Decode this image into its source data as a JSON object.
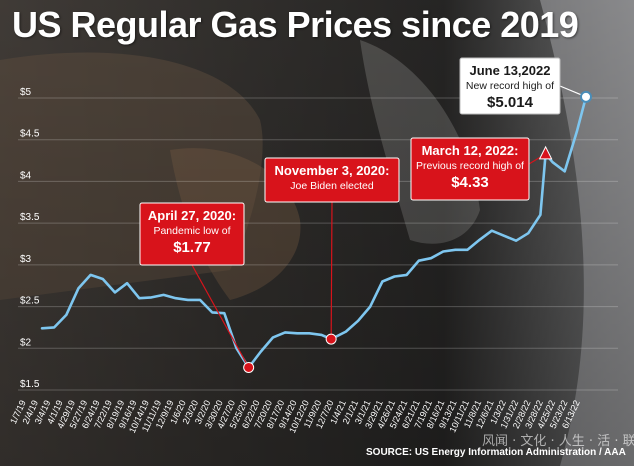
{
  "header": {
    "title": "US Regular Gas Prices since 2019"
  },
  "chart_data": {
    "type": "line",
    "title": "US Regular Gas Prices since 2019",
    "xlabel": "",
    "ylabel": "",
    "ylim": [
      1.5,
      5.0
    ],
    "yticks": [
      "$5",
      "$4.5",
      "$4",
      "$3.5",
      "$3",
      "$2.5",
      "$2",
      "$1.5"
    ],
    "ytick_values": [
      5,
      4.5,
      4,
      3.5,
      3,
      2.5,
      2,
      1.5
    ],
    "grid": true,
    "legend": "none",
    "line_color": "#7ec6ef",
    "xticks": [
      "1/7/19",
      "2/4/19",
      "3/4/19",
      "4/1/19",
      "4/29/19",
      "5/27/19",
      "6/24/19",
      "7/22/19",
      "8/19/19",
      "9/16/19",
      "10/14/19",
      "11/11/19",
      "12/9/19",
      "1/6/20",
      "2/3/20",
      "3/2/20",
      "3/30/20",
      "4/27/20",
      "5/25/20",
      "6/22/20",
      "7/20/20",
      "8/17/20",
      "9/14/20",
      "10/12/20",
      "11/9/20",
      "12/7/20",
      "1/4/21",
      "2/1/21",
      "3/1/21",
      "3/29/21",
      "4/26/21",
      "5/24/21",
      "6/21/21",
      "7/19/21",
      "8/16/21",
      "9/13/21",
      "10/11/21",
      "11/8/21",
      "12/6/21",
      "1/3/22",
      "1/31/22",
      "2/28/22",
      "3/28/22",
      "4/25/22",
      "5/23/22",
      "6/13/22"
    ],
    "x": [
      "2019-01-07",
      "2019-02-04",
      "2019-03-04",
      "2019-04-01",
      "2019-04-29",
      "2019-05-27",
      "2019-06-24",
      "2019-07-22",
      "2019-08-19",
      "2019-09-16",
      "2019-10-14",
      "2019-11-11",
      "2019-12-09",
      "2020-01-06",
      "2020-02-03",
      "2020-03-02",
      "2020-03-30",
      "2020-04-27",
      "2020-05-25",
      "2020-06-22",
      "2020-07-20",
      "2020-08-17",
      "2020-09-14",
      "2020-10-12",
      "2020-11-03",
      "2020-12-07",
      "2021-01-04",
      "2021-02-01",
      "2021-03-01",
      "2021-03-29",
      "2021-04-26",
      "2021-05-24",
      "2021-06-21",
      "2021-07-19",
      "2021-08-16",
      "2021-09-13",
      "2021-10-11",
      "2021-11-08",
      "2021-12-06",
      "2022-01-03",
      "2022-01-31",
      "2022-02-28",
      "2022-03-12",
      "2022-03-28",
      "2022-04-25",
      "2022-05-23",
      "2022-06-13"
    ],
    "values": [
      2.24,
      2.25,
      2.4,
      2.72,
      2.88,
      2.83,
      2.67,
      2.78,
      2.6,
      2.61,
      2.64,
      2.6,
      2.58,
      2.58,
      2.43,
      2.42,
      2.0,
      1.77,
      1.96,
      2.13,
      2.19,
      2.18,
      2.18,
      2.16,
      2.11,
      2.2,
      2.33,
      2.5,
      2.8,
      2.86,
      2.88,
      3.05,
      3.08,
      3.16,
      3.18,
      3.18,
      3.3,
      3.41,
      3.35,
      3.29,
      3.38,
      3.6,
      4.33,
      4.23,
      4.12,
      4.6,
      5.014
    ],
    "annotations": [
      {
        "date": "2020-04-27",
        "value": 1.77,
        "marker": "circle",
        "line1": "April 27, 2020:",
        "line2": "Pandemic low of",
        "line3": "$1.77",
        "style": "red"
      },
      {
        "date": "2020-11-03",
        "value": 2.11,
        "marker": "circle",
        "line1": "November 3, 2020:",
        "line2": "Joe Biden elected",
        "line3": "",
        "style": "red"
      },
      {
        "date": "2022-03-12",
        "value": 4.33,
        "marker": "triangle",
        "line1": "March 12, 2022:",
        "line2": "Previous record high of",
        "line3": "$4.33",
        "style": "red"
      },
      {
        "date": "2022-06-13",
        "value": 5.014,
        "marker": "ring",
        "line1": "June 13,2022",
        "line2": "New record high of",
        "line3": "$5.014",
        "style": "white"
      }
    ]
  },
  "footer": {
    "source": "SOURCE: US Energy Information Administration / AAA",
    "watermark": "风闻 · 文化 · 人生 · 活 · 联盟"
  },
  "colors": {
    "accent_red": "#d8131b",
    "line": "#7ec6ef",
    "grid": "rgba(255,255,255,0.22)",
    "title": "#ffffff"
  }
}
